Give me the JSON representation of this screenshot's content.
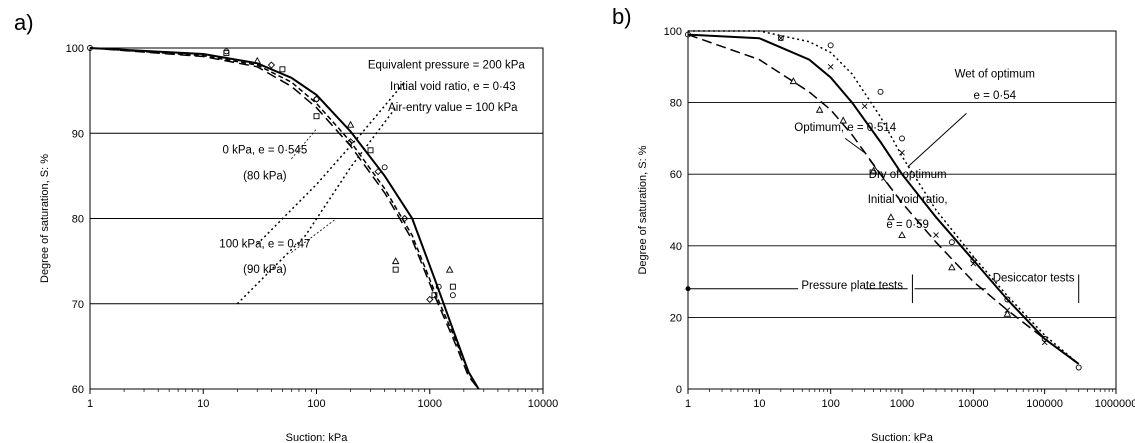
{
  "chart_data": [
    {
      "panel": "a)",
      "type": "line",
      "xscale": "log",
      "xlim": [
        1,
        10000
      ],
      "ylim": [
        60,
        100
      ],
      "xticks": [
        "1",
        "10",
        "100",
        "1000",
        "10000"
      ],
      "yticks": [
        "60",
        "70",
        "80",
        "90",
        "100"
      ],
      "xlabel": "Suction: kPa",
      "ylabel": "Degree of saturation, S: %",
      "grid": "horizontal",
      "series": [
        {
          "style": "solid",
          "x": [
            1,
            10,
            30,
            60,
            100,
            200,
            400,
            700,
            1100,
            1600,
            2200,
            2700
          ],
          "y": [
            100,
            99.3,
            98.2,
            96.5,
            94.5,
            90.2,
            85,
            80,
            73,
            67,
            62,
            60
          ]
        },
        {
          "style": "long-dash",
          "x": [
            1,
            10,
            30,
            60,
            100,
            200,
            400,
            700,
            1100,
            1600,
            2200,
            2700
          ],
          "y": [
            100,
            99,
            97.8,
            95.5,
            93,
            88.5,
            83,
            77.5,
            71,
            66,
            61.5,
            60
          ]
        },
        {
          "style": "short-dash",
          "x": [
            1,
            10,
            30,
            60,
            100,
            200,
            400,
            700,
            1100,
            1600,
            2200,
            2700
          ],
          "y": [
            100,
            99.1,
            98,
            96,
            93.5,
            89,
            83.5,
            78,
            71.5,
            66.5,
            62,
            60
          ]
        },
        {
          "style": "dotted",
          "x": [
            20,
            80,
            200,
            500
          ],
          "y": [
            70,
            78,
            86,
            93
          ]
        },
        {
          "style": "dotted",
          "x": [
            30,
            100,
            250,
            600
          ],
          "y": [
            77,
            84,
            90,
            96
          ]
        }
      ],
      "points": [
        {
          "marker": "circle",
          "x": [
            1,
            16,
            100,
            400,
            1200,
            1600
          ],
          "y": [
            100,
            99.6,
            94,
            86,
            72,
            71
          ]
        },
        {
          "marker": "square",
          "x": [
            16,
            50,
            100,
            300,
            500,
            1100,
            1600
          ],
          "y": [
            99.4,
            97.5,
            92,
            88,
            74,
            71,
            72
          ]
        },
        {
          "marker": "triangle",
          "x": [
            30,
            200,
            500,
            1500
          ],
          "y": [
            98.5,
            91,
            75,
            74
          ]
        },
        {
          "marker": "diamond",
          "x": [
            40,
            100,
            200,
            350,
            600,
            1000
          ],
          "y": [
            98,
            94,
            89,
            85.5,
            80,
            70.5
          ]
        }
      ],
      "annotations": [
        {
          "text": "Equivalent pressure = 200 kPa",
          "x": 1400,
          "y": 97.6
        },
        {
          "text": "Initial void ratio, e = 0·43",
          "x": 1600,
          "y": 95.1
        },
        {
          "text": "Air-entry value = 100 kPa",
          "x": 1600,
          "y": 92.6
        },
        {
          "text": "0 kPa, e = 0·545",
          "x": 35,
          "y": 87.6
        },
        {
          "text": "(80 kPa)",
          "x": 35,
          "y": 84.6
        },
        {
          "text": "100 kPa, e = 0·47",
          "x": 35,
          "y": 76.6
        },
        {
          "text": "(90 kPa)",
          "x": 35,
          "y": 73.6
        }
      ]
    },
    {
      "panel": "b)",
      "type": "line",
      "xscale": "log",
      "xlim": [
        1,
        1000000
      ],
      "ylim": [
        0,
        100
      ],
      "xticks": [
        "1",
        "10",
        "100",
        "1000",
        "10000",
        "100000",
        "1000000"
      ],
      "yticks": [
        "0",
        "20",
        "40",
        "60",
        "80",
        "100"
      ],
      "xlabel": "Suction: kPa",
      "ylabel": "Degree of saturation, S: %",
      "grid": "horizontal",
      "series": [
        {
          "style": "solid",
          "name": "Optimum, e = 0·514",
          "x": [
            1,
            10,
            50,
            100,
            200,
            500,
            1000,
            3000,
            10000,
            30000,
            100000,
            300000
          ],
          "y": [
            99,
            98,
            92,
            87,
            80,
            69,
            60,
            48,
            36,
            25,
            14,
            7
          ]
        },
        {
          "style": "long-dash",
          "name": "Dry of optimum",
          "x": [
            1,
            10,
            50,
            100,
            200,
            500,
            1000,
            3000,
            10000,
            30000,
            100000,
            300000
          ],
          "y": [
            99,
            92,
            83,
            78,
            71,
            60,
            52,
            41,
            30,
            22,
            14,
            7
          ]
        },
        {
          "style": "dotted",
          "name": "Wet of optimum",
          "x": [
            1,
            10,
            50,
            100,
            200,
            500,
            1000,
            3000,
            10000,
            30000,
            100000,
            300000
          ],
          "y": [
            100,
            100,
            97,
            94,
            88,
            76,
            65,
            50,
            37,
            26,
            15,
            7
          ]
        }
      ],
      "points": [
        {
          "marker": "circle",
          "x": [
            1,
            20,
            100,
            500,
            1000,
            5000,
            10000,
            30000,
            100000,
            300000
          ],
          "y": [
            99,
            98,
            96,
            83,
            70,
            41,
            36,
            25,
            14,
            6
          ]
        },
        {
          "marker": "cross",
          "x": [
            20,
            100,
            300,
            1000,
            3000,
            10000,
            30000,
            100000
          ],
          "y": [
            98,
            90,
            79,
            66,
            43,
            35,
            22,
            13
          ]
        },
        {
          "marker": "triangle",
          "x": [
            30,
            70,
            150,
            400,
            700,
            1000,
            5000,
            30000
          ],
          "y": [
            86,
            78,
            75,
            61,
            48,
            43,
            34,
            21
          ]
        }
      ],
      "annotations": [
        {
          "text": "Wet of optimum",
          "x": 20000,
          "y": 87
        },
        {
          "text": "e = 0·54",
          "x": 20000,
          "y": 81
        },
        {
          "text": "Optimum, e = 0·514",
          "x": 160,
          "y": 72
        },
        {
          "text": "Dry of optimum",
          "x": 1200,
          "y": 59
        },
        {
          "text": "Initial void ratio,",
          "x": 1200,
          "y": 52
        },
        {
          "text": "e = 0·59",
          "x": 1200,
          "y": 45
        },
        {
          "text": "Pressure plate tests",
          "x": 200,
          "y": 28
        },
        {
          "text": "Desiccator tests",
          "x": 70000,
          "y": 30
        }
      ]
    }
  ]
}
